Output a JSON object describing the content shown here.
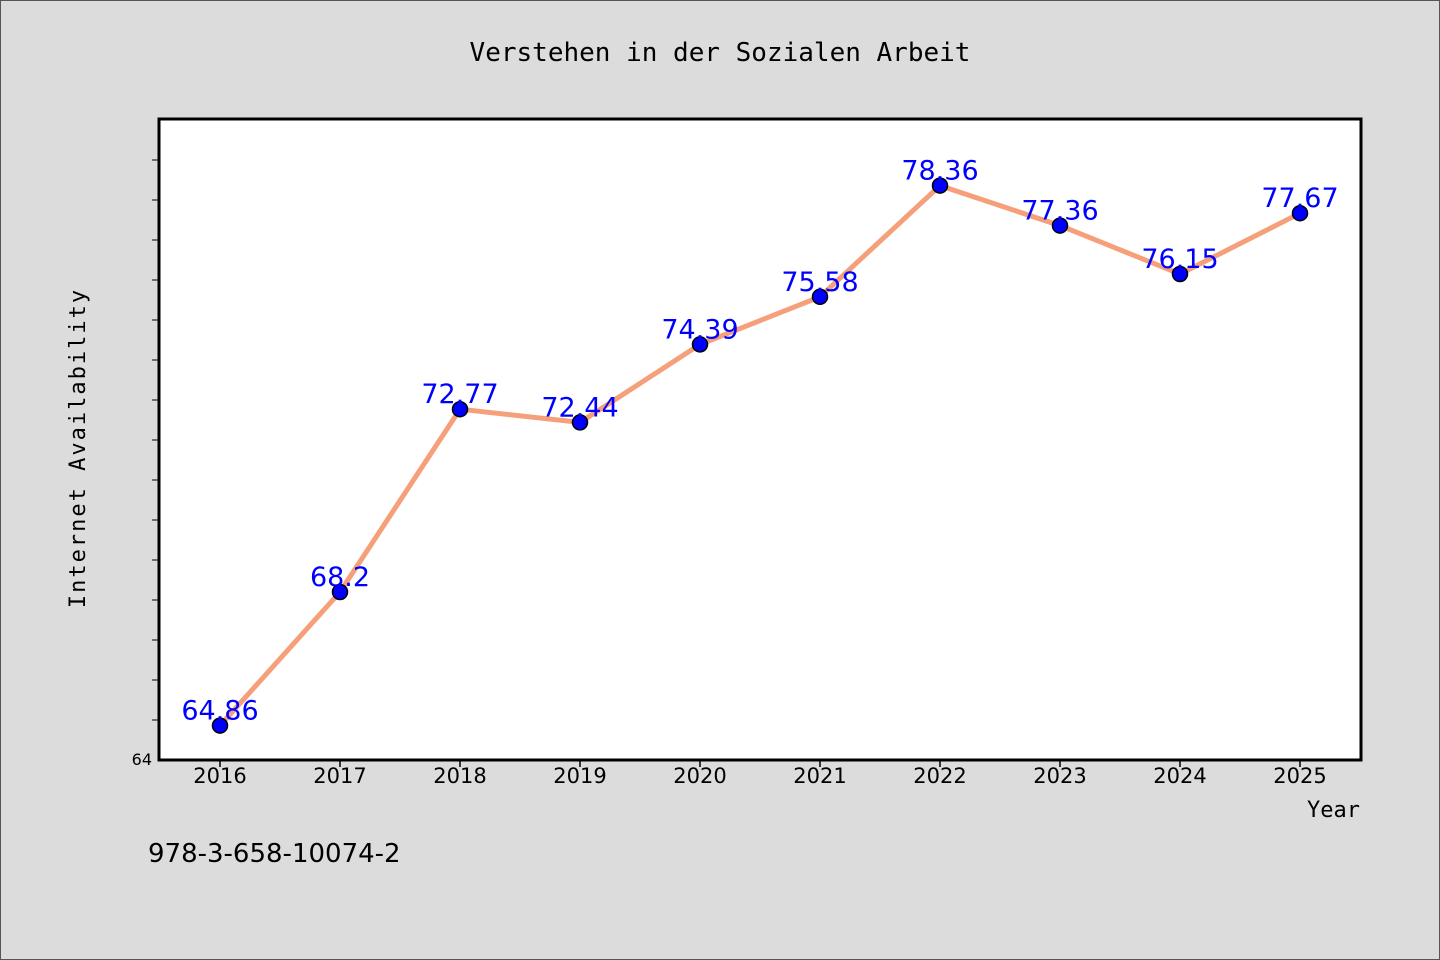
{
  "chart_data": {
    "type": "line",
    "title": "Verstehen in der Sozialen Arbeit",
    "xlabel": "Year",
    "ylabel": "Internet Availability",
    "x": [
      "2016",
      "2017",
      "2018",
      "2019",
      "2020",
      "2021",
      "2022",
      "2023",
      "2024",
      "2025"
    ],
    "series": [
      {
        "values": [
          64.86,
          68.2,
          72.77,
          72.44,
          74.39,
          75.58,
          78.36,
          77.36,
          76.15,
          77.67
        ],
        "labels": [
          "64.86",
          "68.2",
          "72.77",
          "72.44",
          "74.39",
          "75.58",
          "78.36",
          "77.36",
          "76.15",
          "77.67"
        ],
        "line_color": "#f5a07a",
        "marker_color": "#0000ff",
        "label_color": "#0000ff"
      }
    ],
    "ylim": [
      64,
      80
    ],
    "y_tick_labels": [
      "64"
    ],
    "grid": false,
    "legend": "none"
  },
  "footer_text": "978-3-658-10074-2",
  "colors": {
    "background": "#dcdcdc",
    "plot_background": "#ffffff",
    "axis": "#000000"
  }
}
